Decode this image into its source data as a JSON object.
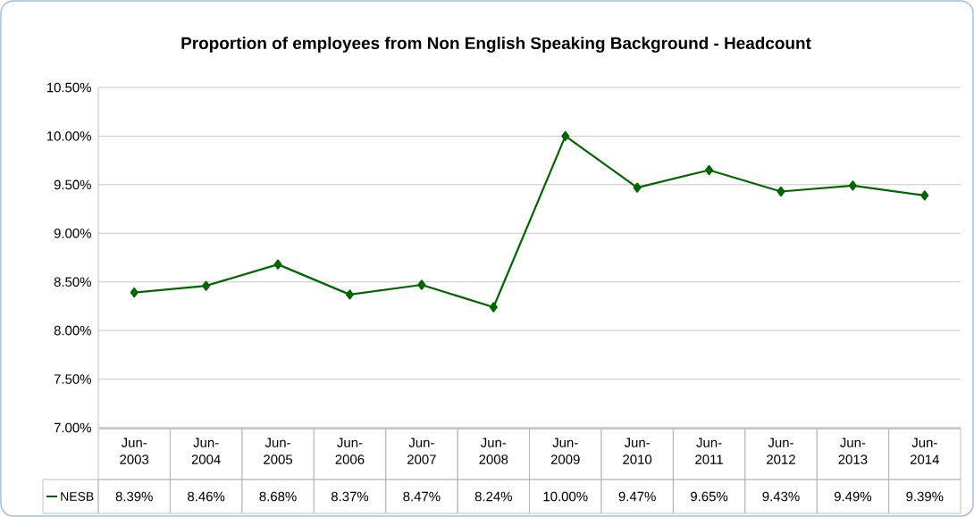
{
  "chart_data": {
    "type": "line",
    "title": "Proportion of employees from Non English Speaking Background - Headcount",
    "categories": [
      "Jun-2003",
      "Jun-2004",
      "Jun-2005",
      "Jun-2006",
      "Jun-2007",
      "Jun-2008",
      "Jun-2009",
      "Jun-2010",
      "Jun-2011",
      "Jun-2012",
      "Jun-2013",
      "Jun-2014"
    ],
    "series": [
      {
        "name": "NESB",
        "color": "#006600",
        "values": [
          8.39,
          8.46,
          8.68,
          8.37,
          8.47,
          8.24,
          10.0,
          9.47,
          9.65,
          9.43,
          9.49,
          9.39
        ],
        "value_labels": [
          "8.39%",
          "8.46%",
          "8.68%",
          "8.37%",
          "8.47%",
          "8.24%",
          "10.00%",
          "9.47%",
          "9.65%",
          "9.43%",
          "9.49%",
          "9.39%"
        ]
      }
    ],
    "ylim": [
      7.0,
      10.5
    ],
    "yticks": [
      {
        "value": 7.0,
        "label": "7.00%"
      },
      {
        "value": 7.5,
        "label": "7.50%"
      },
      {
        "value": 8.0,
        "label": "8.00%"
      },
      {
        "value": 8.5,
        "label": "8.50%"
      },
      {
        "value": 9.0,
        "label": "9.00%"
      },
      {
        "value": 9.5,
        "label": "9.50%"
      },
      {
        "value": 10.0,
        "label": "10.00%"
      },
      {
        "value": 10.5,
        "label": "10.50%"
      }
    ],
    "grid": "y",
    "marker": "diamond",
    "legend": "bottom"
  }
}
